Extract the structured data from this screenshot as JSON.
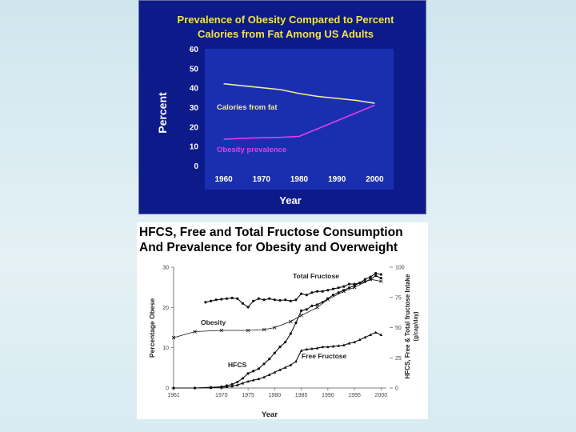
{
  "chart_data": [
    {
      "type": "line",
      "title_lines": [
        "Prevalence of Obesity Compared to Percent",
        "Calories from Fat Among US Adults"
      ],
      "xlabel": "Year",
      "ylabel": "Percent",
      "xlim": [
        1955,
        2005
      ],
      "ylim": [
        0,
        60
      ],
      "x_ticks": [
        "1960",
        "1970",
        "1980",
        "1990",
        "2000"
      ],
      "y_ticks": [
        "0",
        "10",
        "20",
        "30",
        "40",
        "50",
        "60"
      ],
      "colors": {
        "background": "#0d1a8a",
        "plot_bg": "#1a2fb0",
        "title": "#f3e24b"
      },
      "series": [
        {
          "name": "Calories from fat",
          "color": "#f2ec9a",
          "x": [
            1960,
            1965,
            1970,
            1975,
            1980,
            1985,
            1990,
            1995,
            2000
          ],
          "values": [
            42,
            41,
            40,
            39,
            37,
            35.5,
            34.5,
            33.5,
            32
          ]
        },
        {
          "name": "Obesity prevalence",
          "color": "#e040e6",
          "x": [
            1960,
            1965,
            1970,
            1975,
            1980,
            1985,
            1990,
            1995,
            2000
          ],
          "values": [
            13.5,
            14,
            14.3,
            14.5,
            15,
            19,
            23,
            27,
            31
          ]
        }
      ]
    },
    {
      "type": "line",
      "title_lines": [
        "HFCS, Free and Total Fructose Consumption",
        "And Prevalence for Obesity and Overweight"
      ],
      "xlabel": "Year",
      "ylabel": "Percentage Obese",
      "y2label_lines": [
        "HFCS, Free & Total fructose Intake",
        "(g/cap/day)"
      ],
      "xlim": [
        1961,
        2001
      ],
      "ylim": [
        0,
        30
      ],
      "y2lim": [
        0,
        100
      ],
      "x_ticks": [
        "1961",
        "1970",
        "1975",
        "1980",
        "1985",
        "1990",
        "1995",
        "2000"
      ],
      "y_ticks": [
        "0",
        "10",
        "20",
        "30"
      ],
      "y2_ticks": [
        "0",
        "25",
        "50",
        "75",
        "100"
      ],
      "series": [
        {
          "name": "Total Fructose",
          "axis": "right",
          "x": [
            1967,
            1968,
            1969,
            1970,
            1971,
            1972,
            1973,
            1974,
            1975,
            1976,
            1977,
            1978,
            1979,
            1980,
            1981,
            1982,
            1983,
            1984,
            1985,
            1986,
            1987,
            1988,
            1989,
            1990,
            1991,
            1992,
            1993,
            1994,
            1995,
            1996,
            1997,
            1998,
            1999,
            2000
          ],
          "values": [
            71,
            72,
            73,
            73.5,
            74,
            74.5,
            74,
            70,
            67,
            72,
            74,
            73,
            74,
            73,
            72.5,
            73,
            72,
            73,
            78,
            77,
            79,
            80,
            80,
            81,
            82,
            83,
            84,
            86,
            86,
            87,
            88,
            90,
            93,
            91
          ]
        },
        {
          "name": "Obesity",
          "axis": "left",
          "x": [
            1961,
            1965,
            1970,
            1975,
            1978,
            1980,
            1983,
            1985,
            1988,
            1990,
            1993,
            1995,
            1998,
            2000
          ],
          "values": [
            12.5,
            14,
            14.3,
            14.3,
            14.5,
            15,
            16.5,
            18,
            20,
            22,
            24,
            25,
            27,
            26.5
          ]
        },
        {
          "name": "HFCS",
          "axis": "right",
          "x": [
            1961,
            1965,
            1968,
            1970,
            1971,
            1972,
            1973,
            1974,
            1975,
            1976,
            1977,
            1978,
            1979,
            1980,
            1981,
            1982,
            1983,
            1984,
            1985,
            1986,
            1987,
            1988,
            1989,
            1990,
            1991,
            1992,
            1993,
            1994,
            1995,
            1996,
            1997,
            1998,
            1999,
            2000
          ],
          "values": [
            0,
            0,
            0.5,
            1,
            2,
            3,
            5,
            8,
            12,
            14,
            16,
            20,
            24,
            29,
            34,
            38,
            45,
            54,
            64,
            65,
            68,
            69,
            71,
            74,
            77,
            79,
            81,
            83,
            85,
            87,
            90,
            92,
            95,
            94
          ]
        },
        {
          "name": "Free Fructose",
          "axis": "right",
          "x": [
            1961,
            1965,
            1968,
            1970,
            1971,
            1972,
            1973,
            1974,
            1975,
            1976,
            1977,
            1978,
            1979,
            1980,
            1981,
            1982,
            1983,
            1984,
            1985,
            1986,
            1987,
            1988,
            1989,
            1990,
            1991,
            1992,
            1993,
            1994,
            1995,
            1996,
            1997,
            1998,
            1999,
            2000
          ],
          "values": [
            0,
            0,
            0.2,
            0.5,
            1,
            1.5,
            2.5,
            4,
            5.5,
            6.5,
            7.5,
            9,
            11,
            13,
            15,
            17,
            19,
            22,
            31,
            32,
            32.5,
            33,
            34,
            34,
            34.5,
            35,
            35.5,
            37,
            38,
            40,
            42,
            44,
            46,
            44
          ]
        }
      ]
    }
  ]
}
